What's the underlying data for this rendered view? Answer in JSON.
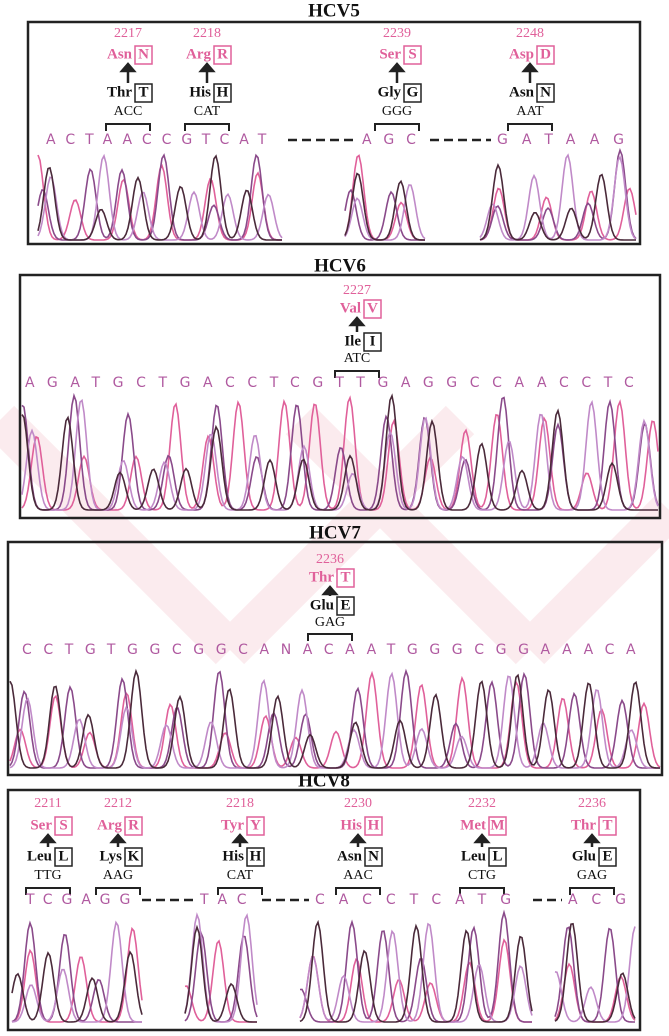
{
  "panels": [
    {
      "title": "HCV5",
      "mutations": [
        {
          "position": 2217,
          "mutant": "Asn",
          "mutant_code": "N",
          "wild": "Thr",
          "wild_code": "T",
          "codon": "ACC"
        },
        {
          "position": 2218,
          "mutant": "Arg",
          "mutant_code": "R",
          "wild": "His",
          "wild_code": "H",
          "codon": "CAT"
        },
        {
          "position": 2239,
          "mutant": "Ser",
          "mutant_code": "S",
          "wild": "Gly",
          "wild_code": "G",
          "codon": "GGG"
        },
        {
          "position": 2248,
          "mutant": "Asp",
          "mutant_code": "D",
          "wild": "Asn",
          "wild_code": "N",
          "codon": "AAT"
        }
      ],
      "sequence": [
        "ACTAACCGTCAT",
        "AGC",
        "GATAAG"
      ]
    },
    {
      "title": "HCV6",
      "mutations": [
        {
          "position": 2227,
          "mutant": "Val",
          "mutant_code": "V",
          "wild": "Ile",
          "wild_code": "I",
          "codon": "ATC"
        }
      ],
      "sequence": [
        "AGATGCTGACCTCGTTGAGGCCAACCTC"
      ]
    },
    {
      "title": "HCV7",
      "mutations": [
        {
          "position": 2236,
          "mutant": "Thr",
          "mutant_code": "T",
          "wild": "Glu",
          "wild_code": "E",
          "codon": "GAG"
        }
      ],
      "sequence": [
        "CCTGTGGCGGCANACAATGGGCGGAAACA"
      ]
    },
    {
      "title": "HCV8",
      "mutations": [
        {
          "position": 2211,
          "mutant": "Ser",
          "mutant_code": "S",
          "wild": "Leu",
          "wild_code": "L",
          "codon": "TTG"
        },
        {
          "position": 2212,
          "mutant": "Arg",
          "mutant_code": "R",
          "wild": "Lys",
          "wild_code": "K",
          "codon": "AAG"
        },
        {
          "position": 2218,
          "mutant": "Tyr",
          "mutant_code": "Y",
          "wild": "His",
          "wild_code": "H",
          "codon": "CAT"
        },
        {
          "position": 2230,
          "mutant": "His",
          "mutant_code": "H",
          "wild": "Asn",
          "wild_code": "N",
          "codon": "AAC"
        },
        {
          "position": 2232,
          "mutant": "Met",
          "mutant_code": "M",
          "wild": "Leu",
          "wild_code": "L",
          "codon": "CTG"
        },
        {
          "position": 2236,
          "mutant": "Thr",
          "mutant_code": "T",
          "wild": "Glu",
          "wild_code": "E",
          "codon": "GAG"
        }
      ],
      "sequence": [
        "TCGAGG",
        "TAC",
        "CACCTCATG",
        "ACG"
      ]
    }
  ]
}
